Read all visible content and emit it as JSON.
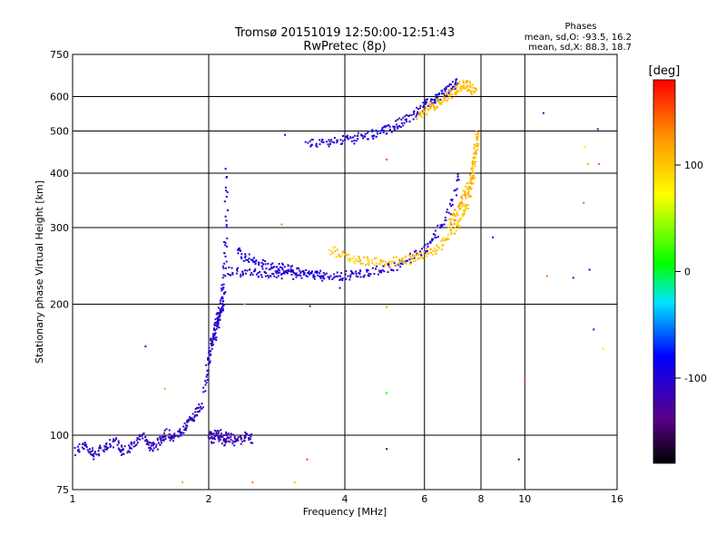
{
  "chart_data": {
    "type": "scatter",
    "title": "Tromsø 20151019 12:50:00-12:51:43",
    "subtitle": "RwPretec (8p)",
    "xlabel": "Frequency [MHz]",
    "ylabel": "Stationary phase Virtual Height [km]",
    "x_scale": "log",
    "y_scale": "log",
    "xlim": [
      1,
      16
    ],
    "ylim": [
      75,
      750
    ],
    "x_ticks": [
      1,
      2,
      4,
      6,
      8,
      10,
      16
    ],
    "y_ticks": [
      75,
      100,
      200,
      300,
      400,
      500,
      600,
      750
    ],
    "x_grid": [
      2,
      4,
      6,
      8,
      10
    ],
    "y_grid": [
      100,
      200,
      300,
      400,
      500,
      600
    ],
    "grid": true,
    "phase_info": {
      "heading": "Phases",
      "o_mode": "mean, sd,O: -93.5, 16.2",
      "x_mode": "mean, sd,X:  88.3, 18.7"
    },
    "colorbar": {
      "label": "[deg]",
      "min": -180,
      "max": 180,
      "ticks": [
        100,
        0,
        -100
      ],
      "palette": "rainbow"
    },
    "traces": [
      {
        "x": [
          1.02,
          1.07,
          1.12,
          1.18,
          1.24,
          1.3,
          1.37,
          1.44,
          1.5,
          1.56,
          1.62,
          1.68,
          1.75,
          1.82,
          1.88,
          1.94
        ],
        "y": [
          92,
          95,
          90,
          94,
          97,
          91,
          96,
          99,
          93,
          97,
          101,
          98,
          104,
          108,
          112,
          118
        ],
        "phase": -110
      },
      {
        "x": [
          1.96,
          2.0,
          2.03,
          2.06,
          2.08,
          2.1,
          2.12,
          2.14,
          2.16,
          2.18,
          2.2
        ],
        "y": [
          125,
          150,
          165,
          170,
          178,
          185,
          190,
          200,
          220,
          280,
          410
        ],
        "phase": -100
      },
      {
        "x": [
          2.0,
          2.05,
          2.1,
          2.15,
          2.2,
          2.3,
          2.4,
          2.5
        ],
        "y": [
          100,
          98,
          102,
          97,
          100,
          96,
          99,
          98
        ],
        "phase": -115
      },
      {
        "x": [
          2.2,
          2.4,
          2.6,
          2.8,
          3.0,
          3.2,
          3.5,
          3.8,
          4.1,
          4.4,
          4.8,
          5.2,
          5.6,
          6.0,
          6.4,
          6.8,
          7.2
        ],
        "y": [
          238,
          237,
          236,
          235,
          234,
          233,
          232,
          232,
          233,
          236,
          240,
          246,
          255,
          268,
          290,
          330,
          400
        ],
        "phase": -105
      },
      {
        "x": [
          2.3,
          2.45,
          2.6,
          2.8,
          3.0,
          3.3,
          3.6
        ],
        "y": [
          265,
          255,
          248,
          244,
          240,
          237,
          234
        ],
        "phase": -95
      },
      {
        "x": [
          3.3,
          3.6,
          3.9,
          4.2,
          4.5,
          4.8,
          5.1,
          5.4,
          5.7,
          6.0,
          6.3,
          6.6,
          6.9,
          7.1
        ],
        "y": [
          468,
          470,
          475,
          480,
          488,
          498,
          510,
          528,
          548,
          570,
          590,
          610,
          630,
          648
        ],
        "phase": -100
      },
      {
        "x": [
          3.7,
          4.0,
          4.3,
          4.6,
          5.0,
          5.4,
          5.8,
          6.2,
          6.6,
          7.0,
          7.3,
          7.5,
          7.7,
          7.8
        ],
        "y": [
          268,
          258,
          252,
          250,
          250,
          252,
          256,
          264,
          276,
          295,
          320,
          350,
          400,
          470
        ],
        "phase": 100
      },
      {
        "x": [
          5.8,
          6.1,
          6.4,
          6.7,
          7.0,
          7.2,
          7.4,
          7.6,
          7.8
        ],
        "y": [
          540,
          560,
          580,
          600,
          620,
          635,
          640,
          630,
          610
        ],
        "phase": 105
      },
      {
        "x": [
          6.8,
          7.0,
          7.2,
          7.4,
          7.6,
          7.7,
          7.8,
          7.9
        ],
        "y": [
          300,
          320,
          340,
          360,
          380,
          420,
          460,
          500
        ],
        "phase": 110
      }
    ],
    "scattered_points": [
      {
        "x": 1.45,
        "y": 160,
        "phase": -100
      },
      {
        "x": 1.6,
        "y": 128,
        "phase": 120
      },
      {
        "x": 1.75,
        "y": 78,
        "phase": 120
      },
      {
        "x": 2.4,
        "y": 200,
        "phase": 110
      },
      {
        "x": 2.5,
        "y": 78,
        "phase": 140
      },
      {
        "x": 2.9,
        "y": 305,
        "phase": 130
      },
      {
        "x": 2.95,
        "y": 490,
        "phase": -100
      },
      {
        "x": 3.1,
        "y": 78,
        "phase": 40
      },
      {
        "x": 3.3,
        "y": 88,
        "phase": 160
      },
      {
        "x": 3.35,
        "y": 198,
        "phase": -130
      },
      {
        "x": 3.9,
        "y": 218,
        "phase": -90
      },
      {
        "x": 4.95,
        "y": 430,
        "phase": 150
      },
      {
        "x": 4.95,
        "y": 197,
        "phase": 120
      },
      {
        "x": 4.95,
        "y": 125,
        "phase": 10
      },
      {
        "x": 4.95,
        "y": 93,
        "phase": -140
      },
      {
        "x": 8.5,
        "y": 285,
        "phase": -110
      },
      {
        "x": 9.7,
        "y": 88,
        "phase": -150
      },
      {
        "x": 10.0,
        "y": 133,
        "phase": 150
      },
      {
        "x": 11.0,
        "y": 550,
        "phase": -110
      },
      {
        "x": 11.2,
        "y": 232,
        "phase": 140
      },
      {
        "x": 12.8,
        "y": 230,
        "phase": -120
      },
      {
        "x": 13.5,
        "y": 342,
        "phase": 140
      },
      {
        "x": 13.6,
        "y": 460,
        "phase": 80
      },
      {
        "x": 13.8,
        "y": 420,
        "phase": 30
      },
      {
        "x": 13.9,
        "y": 240,
        "phase": -100
      },
      {
        "x": 14.2,
        "y": 175,
        "phase": -100
      },
      {
        "x": 14.5,
        "y": 505,
        "phase": -110
      },
      {
        "x": 14.6,
        "y": 420,
        "phase": 150
      },
      {
        "x": 14.9,
        "y": 158,
        "phase": 60
      }
    ]
  }
}
